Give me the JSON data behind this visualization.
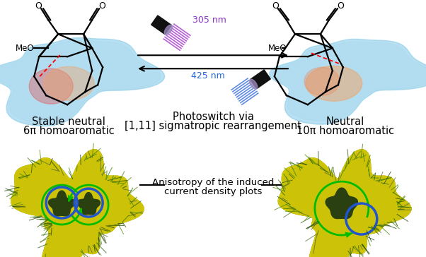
{
  "title": "",
  "arrow_top_label": "305 nm",
  "arrow_bottom_label": "425 nm",
  "label_left_line1": "Stable neutral",
  "label_left_line2": "6π homoaromatic",
  "label_center_line1": "Photoswitch via",
  "label_center_line2": "[1,11] sigmatropic rearrangement",
  "label_right_line1": "Neutral",
  "label_right_line2": "10π homoaromatic",
  "label_bottom_center": "Anisotropy of the induced\ncurrent density plots",
  "top_arrow_label_color": "#8833cc",
  "bottom_arrow_label_color": "#2266dd",
  "bg_color": "#ffffff",
  "figsize": [
    6.02,
    3.64
  ],
  "dpi": 100
}
